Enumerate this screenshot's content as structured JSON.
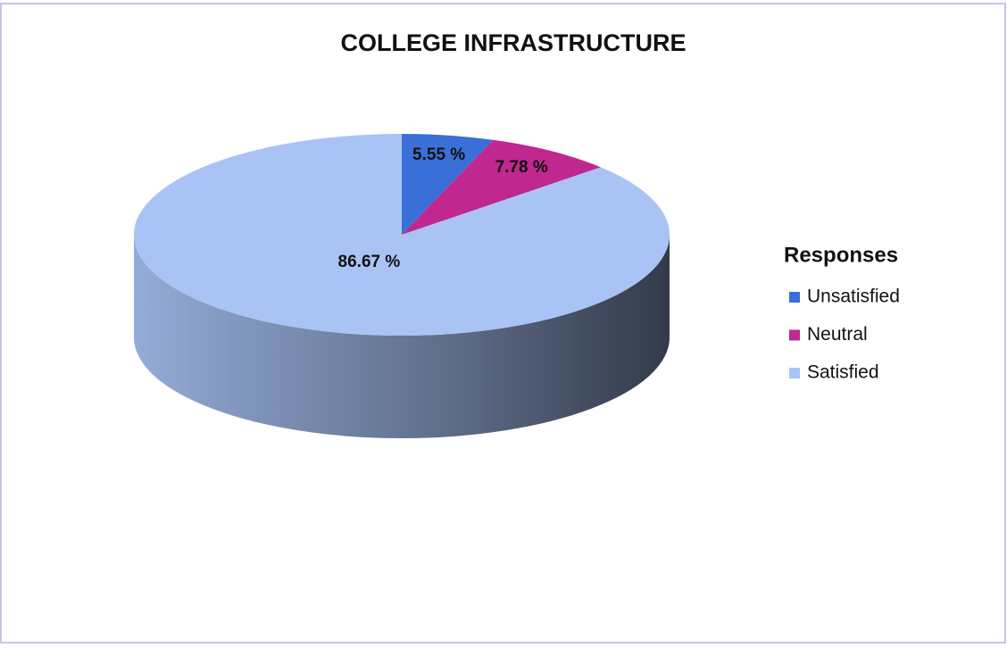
{
  "chart_data": {
    "type": "pie",
    "title": "COLLEGE INFRASTRUCTURE",
    "legend_title": "Responses",
    "categories": [
      "Unsatisfied",
      "Neutral",
      "Satisfied"
    ],
    "values": [
      5.55,
      7.78,
      86.67
    ],
    "value_labels": [
      "5.55 %",
      "7.78 %",
      "86.67 %"
    ],
    "colors": [
      "#3a6fd8",
      "#c0278f",
      "#a9c3f5"
    ],
    "legend": "right"
  }
}
